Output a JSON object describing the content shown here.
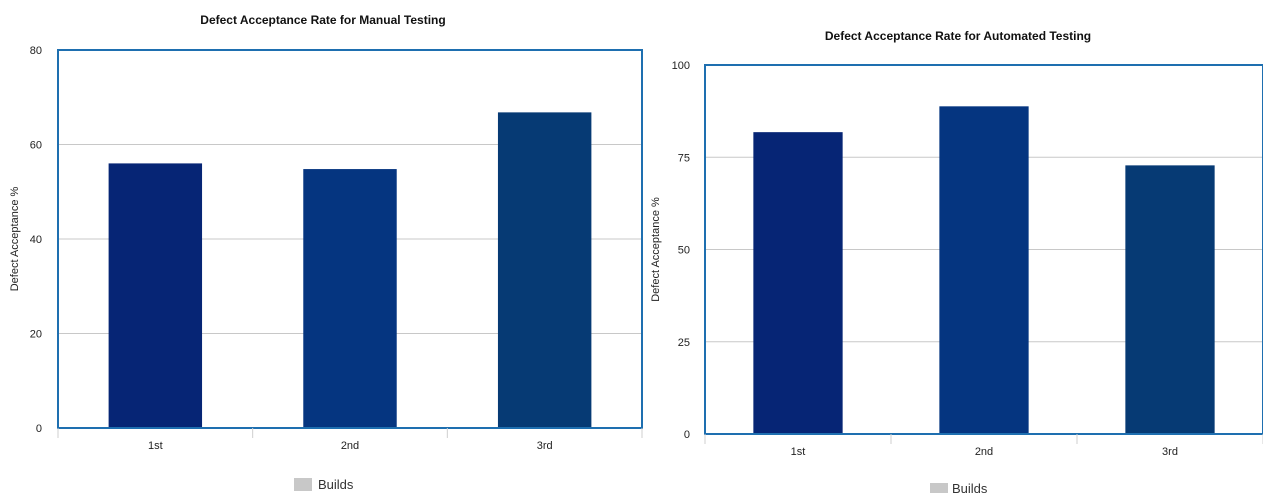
{
  "colors": {
    "frame": "#1e6fb0",
    "grid": "#c8c8c8",
    "legend_swatch": "#c8c8c8"
  },
  "chart_data": [
    {
      "type": "bar",
      "title": "Defect Acceptance Rate for Manual Testing",
      "ylabel": "Defect Acceptance %",
      "xlabel": "",
      "categories": [
        "1st",
        "2nd",
        "3rd"
      ],
      "values": [
        56,
        54.8,
        66.8
      ],
      "bar_colors": [
        "#062575",
        "#053580",
        "#063a74"
      ],
      "ylim": [
        0,
        80
      ],
      "yticks": [
        0,
        20,
        40,
        60,
        80
      ],
      "grid": true,
      "legend": {
        "label": "Builds",
        "placement": "bottom-center"
      }
    },
    {
      "type": "bar",
      "title": "Defect Acceptance Rate for Automated Testing",
      "ylabel": "Defect Acceptance %",
      "xlabel": "",
      "categories": [
        "1st",
        "2nd",
        "3rd"
      ],
      "values": [
        81.8,
        88.8,
        72.8
      ],
      "bar_colors": [
        "#062575",
        "#053580",
        "#063a74"
      ],
      "ylim": [
        0,
        100
      ],
      "yticks": [
        0,
        25,
        50,
        75,
        100
      ],
      "grid": true,
      "legend": {
        "label": "Builds",
        "placement": "bottom-center"
      }
    }
  ]
}
